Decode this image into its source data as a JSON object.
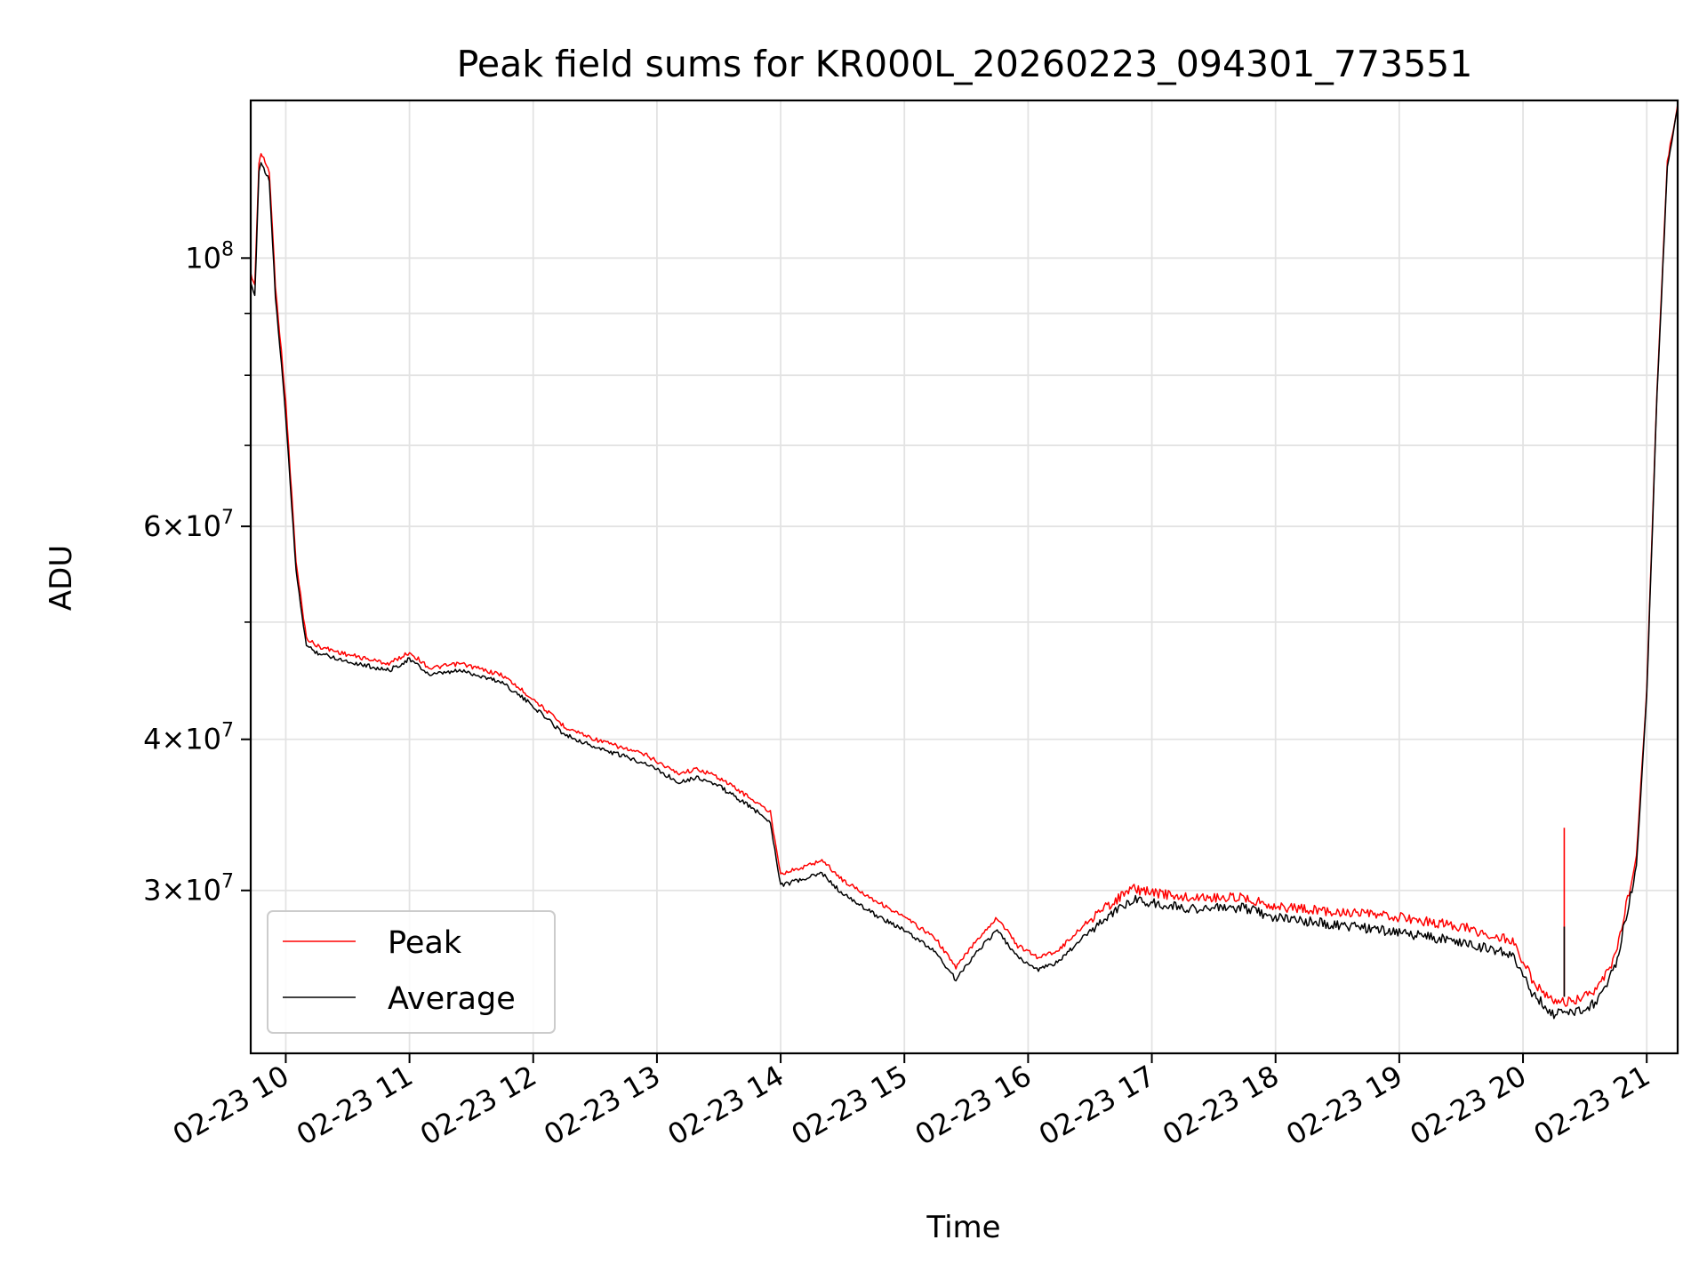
{
  "chart_data": {
    "type": "line",
    "title": "Peak field sums for KR000L_20260223_094301_773551",
    "xlabel": "Time",
    "ylabel": "ADU",
    "y_scale": "log",
    "ylim": [
      22000000,
      135000000
    ],
    "xlim": [
      "2026-02-23 09:43",
      "2026-02-23 21:15"
    ],
    "grid": true,
    "legend_placement": "lower-left",
    "x_ticks": [
      "02-23 10",
      "02-23 11",
      "02-23 12",
      "02-23 13",
      "02-23 14",
      "02-23 15",
      "02-23 16",
      "02-23 17",
      "02-23 18",
      "02-23 19",
      "02-23 20",
      "02-23 21"
    ],
    "y_ticks": [
      {
        "value": 30000000,
        "mantissa": "3",
        "exponent": "7"
      },
      {
        "value": 40000000,
        "mantissa": "4",
        "exponent": "7"
      },
      {
        "value": 60000000,
        "mantissa": "6",
        "exponent": "7"
      },
      {
        "value": 100000000,
        "mantissa": "",
        "exponent": "8"
      }
    ],
    "series": [
      {
        "name": "Peak",
        "color": "#ff0000",
        "x": [
          "2026-02-23 09:43",
          "2026-02-23 09:45",
          "2026-02-23 09:47",
          "2026-02-23 09:48",
          "2026-02-23 09:52",
          "2026-02-23 09:55",
          "2026-02-23 10:00",
          "2026-02-23 10:05",
          "2026-02-23 10:10",
          "2026-02-23 10:15",
          "2026-02-23 10:30",
          "2026-02-23 10:50",
          "2026-02-23 11:00",
          "2026-02-23 11:10",
          "2026-02-23 11:25",
          "2026-02-23 11:45",
          "2026-02-23 12:00",
          "2026-02-23 12:15",
          "2026-02-23 12:30",
          "2026-02-23 12:55",
          "2026-02-23 13:10",
          "2026-02-23 13:20",
          "2026-02-23 13:30",
          "2026-02-23 13:45",
          "2026-02-23 13:55",
          "2026-02-23 14:00",
          "2026-02-23 14:10",
          "2026-02-23 14:20",
          "2026-02-23 14:30",
          "2026-02-23 14:45",
          "2026-02-23 15:00",
          "2026-02-23 15:15",
          "2026-02-23 15:25",
          "2026-02-23 15:35",
          "2026-02-23 15:45",
          "2026-02-23 15:55",
          "2026-02-23 16:05",
          "2026-02-23 16:15",
          "2026-02-23 16:30",
          "2026-02-23 16:50",
          "2026-02-23 17:15",
          "2026-02-23 17:45",
          "2026-02-23 18:00",
          "2026-02-23 18:30",
          "2026-02-23 19:00",
          "2026-02-23 19:30",
          "2026-02-23 19:45",
          "2026-02-23 19:55",
          "2026-02-23 20:05",
          "2026-02-23 20:15",
          "2026-02-23 20:25",
          "2026-02-23 20:35",
          "2026-02-23 20:45",
          "2026-02-23 20:55",
          "2026-02-23 21:00",
          "2026-02-23 21:05",
          "2026-02-23 21:10",
          "2026-02-23 21:15"
        ],
        "y": [
          97000000,
          95000000,
          120000000,
          122000000,
          118000000,
          95000000,
          76000000,
          56000000,
          48500000,
          47800000,
          47000000,
          46200000,
          47200000,
          45800000,
          46200000,
          45200000,
          43200000,
          41000000,
          40000000,
          38800000,
          37500000,
          37800000,
          37200000,
          35800000,
          34800000,
          31000000,
          31300000,
          31800000,
          30600000,
          29500000,
          28500000,
          27400000,
          25900000,
          27300000,
          28500000,
          27000000,
          26400000,
          26800000,
          28400000,
          30100000,
          29600000,
          29600000,
          29100000,
          28800000,
          28500000,
          28000000,
          27500000,
          27300000,
          25200000,
          24200000,
          24300000,
          24700000,
          26500000,
          32000000,
          44000000,
          78000000,
          120000000,
          134000000
        ]
      },
      {
        "name": "Average",
        "color": "#000000",
        "x": [
          "2026-02-23 09:43",
          "2026-02-23 09:45",
          "2026-02-23 09:47",
          "2026-02-23 09:48",
          "2026-02-23 09:52",
          "2026-02-23 09:55",
          "2026-02-23 10:00",
          "2026-02-23 10:05",
          "2026-02-23 10:10",
          "2026-02-23 10:15",
          "2026-02-23 10:30",
          "2026-02-23 10:50",
          "2026-02-23 11:00",
          "2026-02-23 11:10",
          "2026-02-23 11:25",
          "2026-02-23 11:45",
          "2026-02-23 12:00",
          "2026-02-23 12:15",
          "2026-02-23 12:30",
          "2026-02-23 12:55",
          "2026-02-23 13:10",
          "2026-02-23 13:20",
          "2026-02-23 13:30",
          "2026-02-23 13:45",
          "2026-02-23 13:55",
          "2026-02-23 14:00",
          "2026-02-23 14:10",
          "2026-02-23 14:20",
          "2026-02-23 14:30",
          "2026-02-23 14:45",
          "2026-02-23 15:00",
          "2026-02-23 15:15",
          "2026-02-23 15:25",
          "2026-02-23 15:35",
          "2026-02-23 15:45",
          "2026-02-23 15:55",
          "2026-02-23 16:05",
          "2026-02-23 16:15",
          "2026-02-23 16:30",
          "2026-02-23 16:50",
          "2026-02-23 17:15",
          "2026-02-23 17:45",
          "2026-02-23 18:00",
          "2026-02-23 18:30",
          "2026-02-23 19:00",
          "2026-02-23 19:30",
          "2026-02-23 19:45",
          "2026-02-23 19:55",
          "2026-02-23 20:05",
          "2026-02-23 20:15",
          "2026-02-23 20:25",
          "2026-02-23 20:35",
          "2026-02-23 20:45",
          "2026-02-23 20:55",
          "2026-02-23 21:00",
          "2026-02-23 21:05",
          "2026-02-23 21:10",
          "2026-02-23 21:15"
        ],
        "y": [
          95000000,
          93000000,
          118000000,
          120000000,
          116000000,
          93000000,
          74000000,
          55000000,
          47800000,
          47200000,
          46400000,
          45600000,
          46600000,
          45200000,
          45600000,
          44600000,
          42600000,
          40400000,
          39400000,
          38200000,
          36900000,
          37200000,
          36600000,
          35200000,
          34200000,
          30300000,
          30600000,
          31000000,
          29800000,
          28700000,
          27800000,
          26700000,
          25300000,
          26700000,
          27800000,
          26400000,
          25800000,
          26200000,
          27800000,
          29500000,
          29000000,
          29000000,
          28500000,
          28100000,
          27700000,
          27200000,
          26800000,
          26500000,
          24600000,
          23700000,
          23800000,
          24200000,
          26000000,
          31400000,
          43500000,
          77000000,
          119000000,
          133000000
        ]
      }
    ],
    "spikes": [
      {
        "series": "Peak",
        "x": "2026-02-23 20:20",
        "y": 33800000
      },
      {
        "series": "Average",
        "x": "2026-02-23 20:20",
        "y": 28000000
      }
    ]
  }
}
